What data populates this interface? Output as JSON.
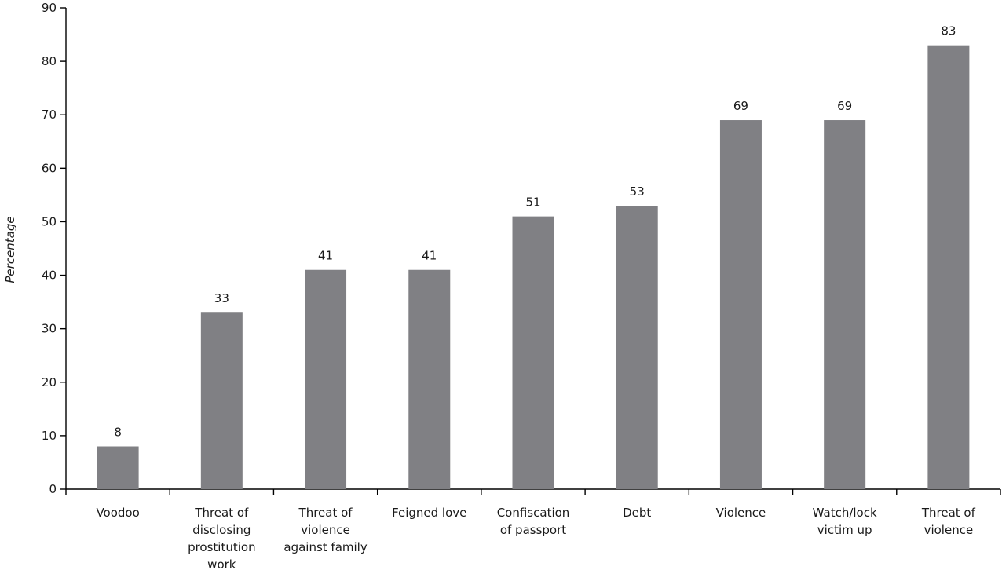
{
  "chart_data": {
    "type": "bar",
    "categories": [
      "Voodoo",
      "Threat of disclosing prostitution work",
      "Threat of violence against family",
      "Feigned love",
      "Confiscation of passport",
      "Debt",
      "Violence",
      "Watch/lock victim up",
      "Threat of violence"
    ],
    "category_lines": [
      [
        "Voodoo"
      ],
      [
        "Threat of",
        "disclosing",
        "prostitution",
        "work"
      ],
      [
        "Threat of",
        "violence",
        "against family"
      ],
      [
        "Feigned love"
      ],
      [
        "Confiscation",
        "of passport"
      ],
      [
        "Debt"
      ],
      [
        "Violence"
      ],
      [
        "Watch/lock",
        "victim up"
      ],
      [
        "Threat of",
        "violence"
      ]
    ],
    "values": [
      8,
      33,
      41,
      41,
      51,
      53,
      69,
      69,
      83
    ],
    "value_labels": [
      "8",
      "33",
      "41",
      "41",
      "51",
      "53",
      "69",
      "69",
      "83"
    ],
    "ylabel": "Percentage",
    "xlabel": "",
    "ylim": [
      0,
      90
    ],
    "yticks": [
      0,
      10,
      20,
      30,
      40,
      50,
      60,
      70,
      80,
      90
    ],
    "ytick_labels": [
      "0",
      "10",
      "20",
      "30",
      "40",
      "50",
      "60",
      "70",
      "80",
      "90"
    ],
    "bar_color": "#808084",
    "grid": false,
    "legend": "none"
  }
}
